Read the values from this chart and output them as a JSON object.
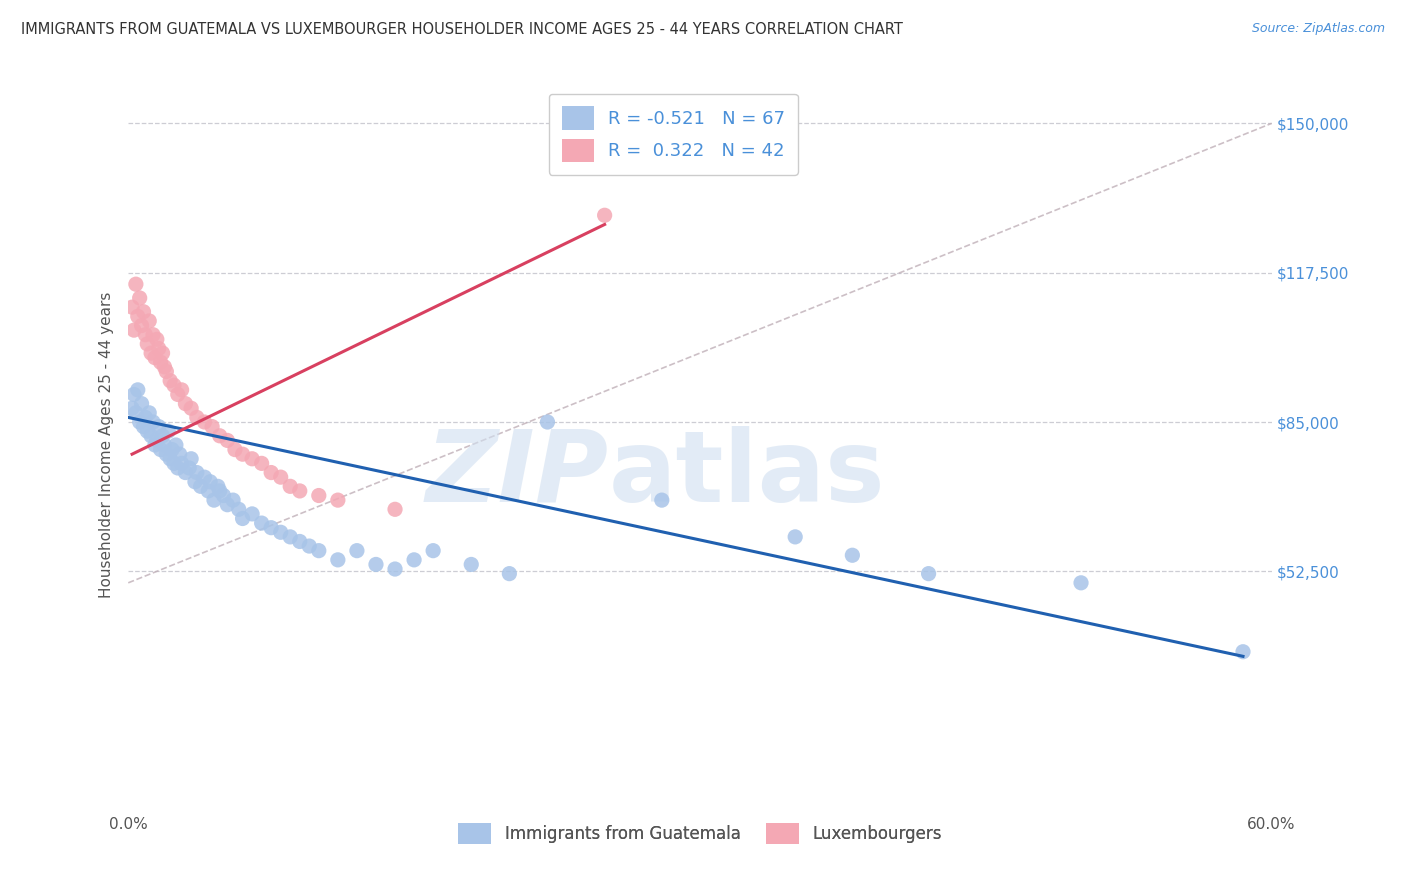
{
  "title": "IMMIGRANTS FROM GUATEMALA VS LUXEMBOURGER HOUSEHOLDER INCOME AGES 25 - 44 YEARS CORRELATION CHART",
  "source": "Source: ZipAtlas.com",
  "ylabel": "Householder Income Ages 25 - 44 years",
  "xlim": [
    0.0,
    0.6
  ],
  "ylim": [
    0,
    160000
  ],
  "yticks": [
    52500,
    85000,
    117500,
    150000
  ],
  "ytick_labels": [
    "$52,500",
    "$85,000",
    "$117,500",
    "$150,000"
  ],
  "xticks": [
    0.0,
    0.1,
    0.2,
    0.3,
    0.4,
    0.5,
    0.6
  ],
  "xtick_labels": [
    "0.0%",
    "",
    "",
    "",
    "",
    "",
    "60.0%"
  ],
  "blue_R": -0.521,
  "blue_N": 67,
  "pink_R": 0.322,
  "pink_N": 42,
  "blue_color": "#a8c4e8",
  "pink_color": "#f4a8b4",
  "blue_line_color": "#2060b0",
  "pink_line_color": "#d84060",
  "dash_line_color": "#c0b0b8",
  "grid_color": "#c8c8d0",
  "blue_scatter_x": [
    0.002,
    0.003,
    0.004,
    0.005,
    0.006,
    0.007,
    0.008,
    0.009,
    0.01,
    0.011,
    0.012,
    0.013,
    0.014,
    0.015,
    0.016,
    0.017,
    0.018,
    0.019,
    0.02,
    0.021,
    0.022,
    0.023,
    0.024,
    0.025,
    0.026,
    0.027,
    0.028,
    0.03,
    0.032,
    0.033,
    0.035,
    0.036,
    0.038,
    0.04,
    0.042,
    0.043,
    0.045,
    0.047,
    0.048,
    0.05,
    0.052,
    0.055,
    0.058,
    0.06,
    0.065,
    0.07,
    0.075,
    0.08,
    0.085,
    0.09,
    0.095,
    0.1,
    0.11,
    0.12,
    0.13,
    0.14,
    0.15,
    0.16,
    0.18,
    0.2,
    0.22,
    0.28,
    0.35,
    0.38,
    0.42,
    0.5,
    0.585
  ],
  "blue_scatter_y": [
    88000,
    91000,
    87000,
    92000,
    85000,
    89000,
    84000,
    86000,
    83000,
    87000,
    82000,
    85000,
    80000,
    81000,
    84000,
    79000,
    82000,
    80000,
    78000,
    83000,
    77000,
    79000,
    76000,
    80000,
    75000,
    78000,
    76000,
    74000,
    75000,
    77000,
    72000,
    74000,
    71000,
    73000,
    70000,
    72000,
    68000,
    71000,
    70000,
    69000,
    67000,
    68000,
    66000,
    64000,
    65000,
    63000,
    62000,
    61000,
    60000,
    59000,
    58000,
    57000,
    55000,
    57000,
    54000,
    53000,
    55000,
    57000,
    54000,
    52000,
    85000,
    68000,
    60000,
    56000,
    52000,
    50000,
    35000
  ],
  "pink_scatter_x": [
    0.002,
    0.003,
    0.004,
    0.005,
    0.006,
    0.007,
    0.008,
    0.009,
    0.01,
    0.011,
    0.012,
    0.013,
    0.014,
    0.015,
    0.016,
    0.017,
    0.018,
    0.019,
    0.02,
    0.022,
    0.024,
    0.026,
    0.028,
    0.03,
    0.033,
    0.036,
    0.04,
    0.044,
    0.048,
    0.052,
    0.056,
    0.06,
    0.065,
    0.07,
    0.075,
    0.08,
    0.085,
    0.09,
    0.1,
    0.11,
    0.14,
    0.25
  ],
  "pink_scatter_y": [
    110000,
    105000,
    115000,
    108000,
    112000,
    106000,
    109000,
    104000,
    102000,
    107000,
    100000,
    104000,
    99000,
    103000,
    101000,
    98000,
    100000,
    97000,
    96000,
    94000,
    93000,
    91000,
    92000,
    89000,
    88000,
    86000,
    85000,
    84000,
    82000,
    81000,
    79000,
    78000,
    77000,
    76000,
    74000,
    73000,
    71000,
    70000,
    69000,
    68000,
    66000,
    130000
  ],
  "blue_line_x": [
    0.0,
    0.585
  ],
  "blue_line_y": [
    86000,
    34000
  ],
  "pink_line_x": [
    0.002,
    0.25
  ],
  "pink_line_y": [
    78000,
    128000
  ],
  "dash_line_x": [
    0.0,
    0.6
  ],
  "dash_line_y": [
    50000,
    150000
  ]
}
